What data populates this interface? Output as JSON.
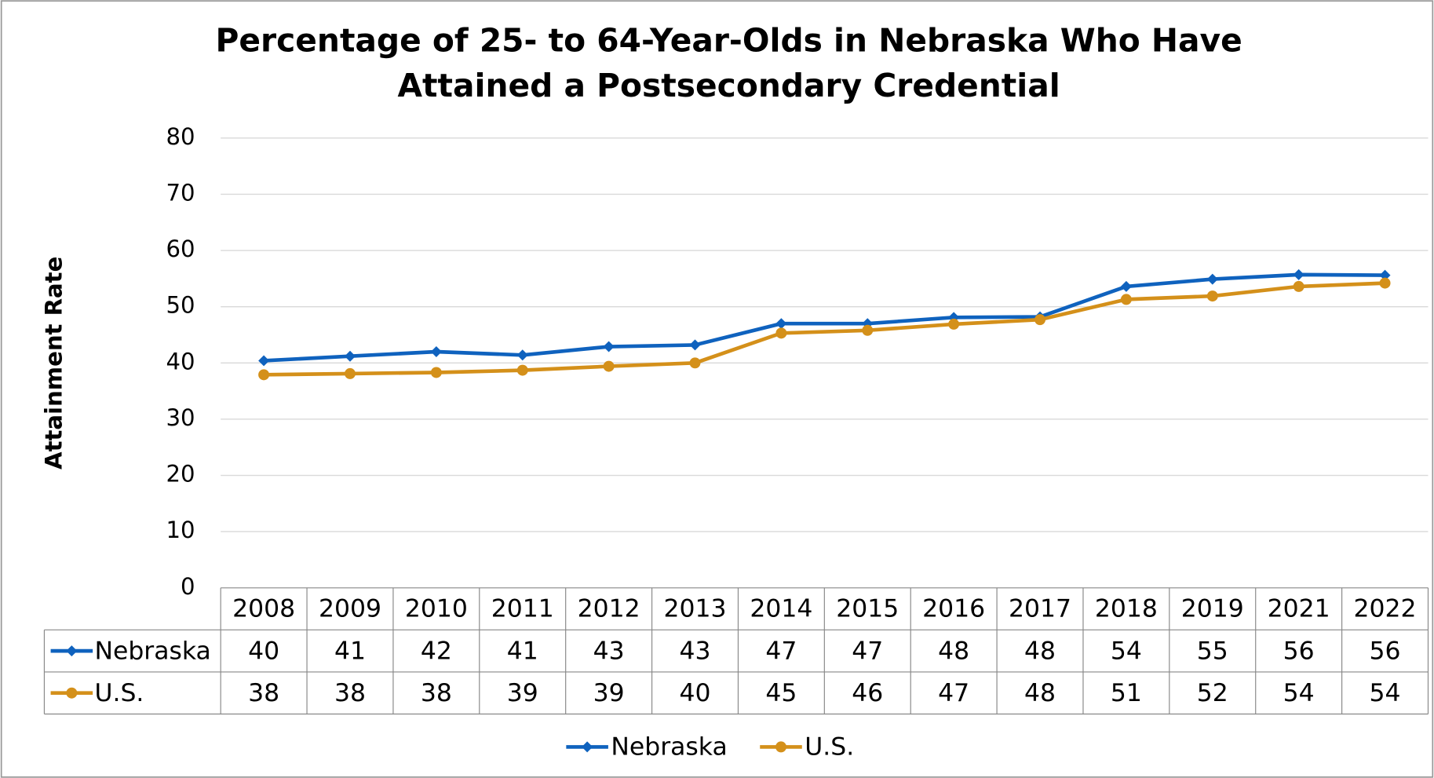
{
  "chart_data": {
    "type": "line",
    "title": [
      "Percentage of 25- to 64-Year-Olds in Nebraska Who Have",
      "Attained a Postsecondary Credential"
    ],
    "y_label": "Attainment Rate",
    "categories": [
      "2008",
      "2009",
      "2010",
      "2011",
      "2012",
      "2013",
      "2014",
      "2015",
      "2016",
      "2017",
      "2018",
      "2019",
      "2021",
      "2022"
    ],
    "series": [
      {
        "name": "Nebraska",
        "color": "#0f62be",
        "marker": "diamond",
        "values": [
          40.4,
          41.2,
          42.0,
          41.4,
          42.9,
          43.2,
          47.0,
          47.0,
          48.1,
          48.2,
          53.6,
          54.9,
          55.7,
          55.6
        ],
        "value_labels": [
          "40",
          "41",
          "42",
          "41",
          "43",
          "43",
          "47",
          "47",
          "48",
          "48",
          "54",
          "55",
          "56",
          "56"
        ]
      },
      {
        "name": "U.S.",
        "color": "#d4901a",
        "marker": "circle",
        "values": [
          37.9,
          38.1,
          38.3,
          38.7,
          39.4,
          40.0,
          45.3,
          45.8,
          46.9,
          47.7,
          51.3,
          51.9,
          53.6,
          54.2
        ],
        "value_labels": [
          "38",
          "38",
          "38",
          "39",
          "39",
          "40",
          "45",
          "46",
          "47",
          "48",
          "51",
          "52",
          "54",
          "54"
        ]
      }
    ],
    "ylim": [
      0,
      80
    ],
    "yticks": [
      0,
      10,
      20,
      30,
      40,
      50,
      60,
      70,
      80
    ],
    "grid": true,
    "legend": "bottom"
  }
}
